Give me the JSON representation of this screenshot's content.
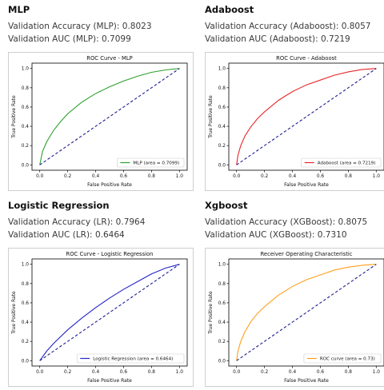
{
  "panels": [
    {
      "heading": "MLP",
      "accuracy_text": "Validation Accuracy (MLP): 0.8023",
      "auc_text": "Validation AUC (MLP): 0.7099"
    },
    {
      "heading": "Adaboost",
      "accuracy_text": "Validation Accuracy (Adaboost): 0.8057",
      "auc_text": "Validation AUC (Adaboost): 0.7219"
    },
    {
      "heading": "Logistic Regression",
      "accuracy_text": "Validation Accuracy (LR): 0.7964",
      "auc_text": "Validation AUC (LR): 0.6464"
    },
    {
      "heading": "Xgboost",
      "accuracy_text": "Validation Accuracy (XGBoost): 0.8075",
      "auc_text": "Validation AUC (XGBoost): 0.7310"
    }
  ],
  "chart_data": [
    {
      "type": "line",
      "title": "ROC Curve - MLP",
      "xlabel": "False Positive Rate",
      "ylabel": "True Positive Rate",
      "xlim": [
        0,
        1
      ],
      "ylim": [
        0,
        1
      ],
      "xticks": [
        "0.0",
        "0.2",
        "0.4",
        "0.6",
        "0.8",
        "1.0"
      ],
      "yticks": [
        "0.0",
        "0.2",
        "0.4",
        "0.6",
        "0.8",
        "1.0"
      ],
      "legend_position": "lower-right",
      "series": [
        {
          "name": "MLP (area = 0.7099)",
          "color": "#2ca02c",
          "x": [
            0,
            0.02,
            0.05,
            0.1,
            0.15,
            0.2,
            0.3,
            0.4,
            0.5,
            0.6,
            0.7,
            0.8,
            0.9,
            1.0
          ],
          "y": [
            0,
            0.14,
            0.24,
            0.36,
            0.45,
            0.53,
            0.65,
            0.74,
            0.81,
            0.87,
            0.92,
            0.96,
            0.985,
            1.0
          ]
        },
        {
          "name": "",
          "color": "#1f1f8f",
          "dashed": true,
          "x": [
            0,
            1
          ],
          "y": [
            0,
            1
          ]
        }
      ]
    },
    {
      "type": "line",
      "title": "ROC Curve - Adaboost",
      "xlabel": "False Positive Rate",
      "ylabel": "True Positive Rate",
      "xlim": [
        0,
        1
      ],
      "ylim": [
        0,
        1
      ],
      "xticks": [
        "0.0",
        "0.2",
        "0.4",
        "0.6",
        "0.8",
        "1.0"
      ],
      "yticks": [
        "0.0",
        "0.2",
        "0.4",
        "0.6",
        "0.8",
        "1.0"
      ],
      "legend_position": "lower-right",
      "series": [
        {
          "name": "Adaboost (area = 0.7219)",
          "color": "#e8262a",
          "x": [
            0,
            0.01,
            0.03,
            0.06,
            0.1,
            0.15,
            0.2,
            0.3,
            0.4,
            0.5,
            0.6,
            0.7,
            0.8,
            0.9,
            1.0
          ],
          "y": [
            0,
            0.1,
            0.2,
            0.3,
            0.39,
            0.48,
            0.55,
            0.67,
            0.76,
            0.83,
            0.88,
            0.93,
            0.965,
            0.99,
            1.0
          ]
        },
        {
          "name": "",
          "color": "#1f1f8f",
          "dashed": true,
          "x": [
            0,
            1
          ],
          "y": [
            0,
            1
          ]
        }
      ]
    },
    {
      "type": "line",
      "title": "ROC Curve - Logistic Regression",
      "xlabel": "False Positive Rate",
      "ylabel": "True Positive Rate",
      "xlim": [
        0,
        1
      ],
      "ylim": [
        0,
        1
      ],
      "xticks": [
        "0.0",
        "0.2",
        "0.4",
        "0.6",
        "0.8",
        "1.0"
      ],
      "yticks": [
        "0.0",
        "0.2",
        "0.4",
        "0.6",
        "0.8",
        "1.0"
      ],
      "legend_position": "lower-right",
      "series": [
        {
          "name": "Logistic Regression (area = 0.6464)",
          "color": "#2323c8",
          "x": [
            0,
            0.05,
            0.1,
            0.2,
            0.3,
            0.4,
            0.5,
            0.6,
            0.7,
            0.8,
            0.9,
            1.0
          ],
          "y": [
            0,
            0.1,
            0.18,
            0.32,
            0.44,
            0.55,
            0.65,
            0.74,
            0.82,
            0.9,
            0.96,
            1.0
          ]
        },
        {
          "name": "",
          "color": "#1f1f8f",
          "dashed": true,
          "x": [
            0,
            1
          ],
          "y": [
            0,
            1
          ]
        }
      ]
    },
    {
      "type": "line",
      "title": "Receiver Operating Characteristic",
      "xlabel": "False Positive Rate",
      "ylabel": "True Positive Rate",
      "xlim": [
        0,
        1
      ],
      "ylim": [
        0,
        1
      ],
      "xticks": [
        "0.0",
        "0.2",
        "0.4",
        "0.6",
        "0.8",
        "1.0"
      ],
      "yticks": [
        "0.0",
        "0.2",
        "0.4",
        "0.6",
        "0.8",
        "1.0"
      ],
      "legend_position": "lower-right",
      "series": [
        {
          "name": "ROC curve (area = 0.73)",
          "color": "#ff9f1c",
          "x": [
            0,
            0.01,
            0.03,
            0.06,
            0.1,
            0.15,
            0.2,
            0.3,
            0.4,
            0.5,
            0.6,
            0.7,
            0.8,
            0.9,
            1.0
          ],
          "y": [
            0,
            0.1,
            0.2,
            0.3,
            0.4,
            0.49,
            0.56,
            0.68,
            0.77,
            0.84,
            0.89,
            0.94,
            0.97,
            0.99,
            1.0
          ]
        },
        {
          "name": "",
          "color": "#1f1f8f",
          "dashed": true,
          "x": [
            0,
            1
          ],
          "y": [
            0,
            1
          ]
        }
      ]
    }
  ]
}
